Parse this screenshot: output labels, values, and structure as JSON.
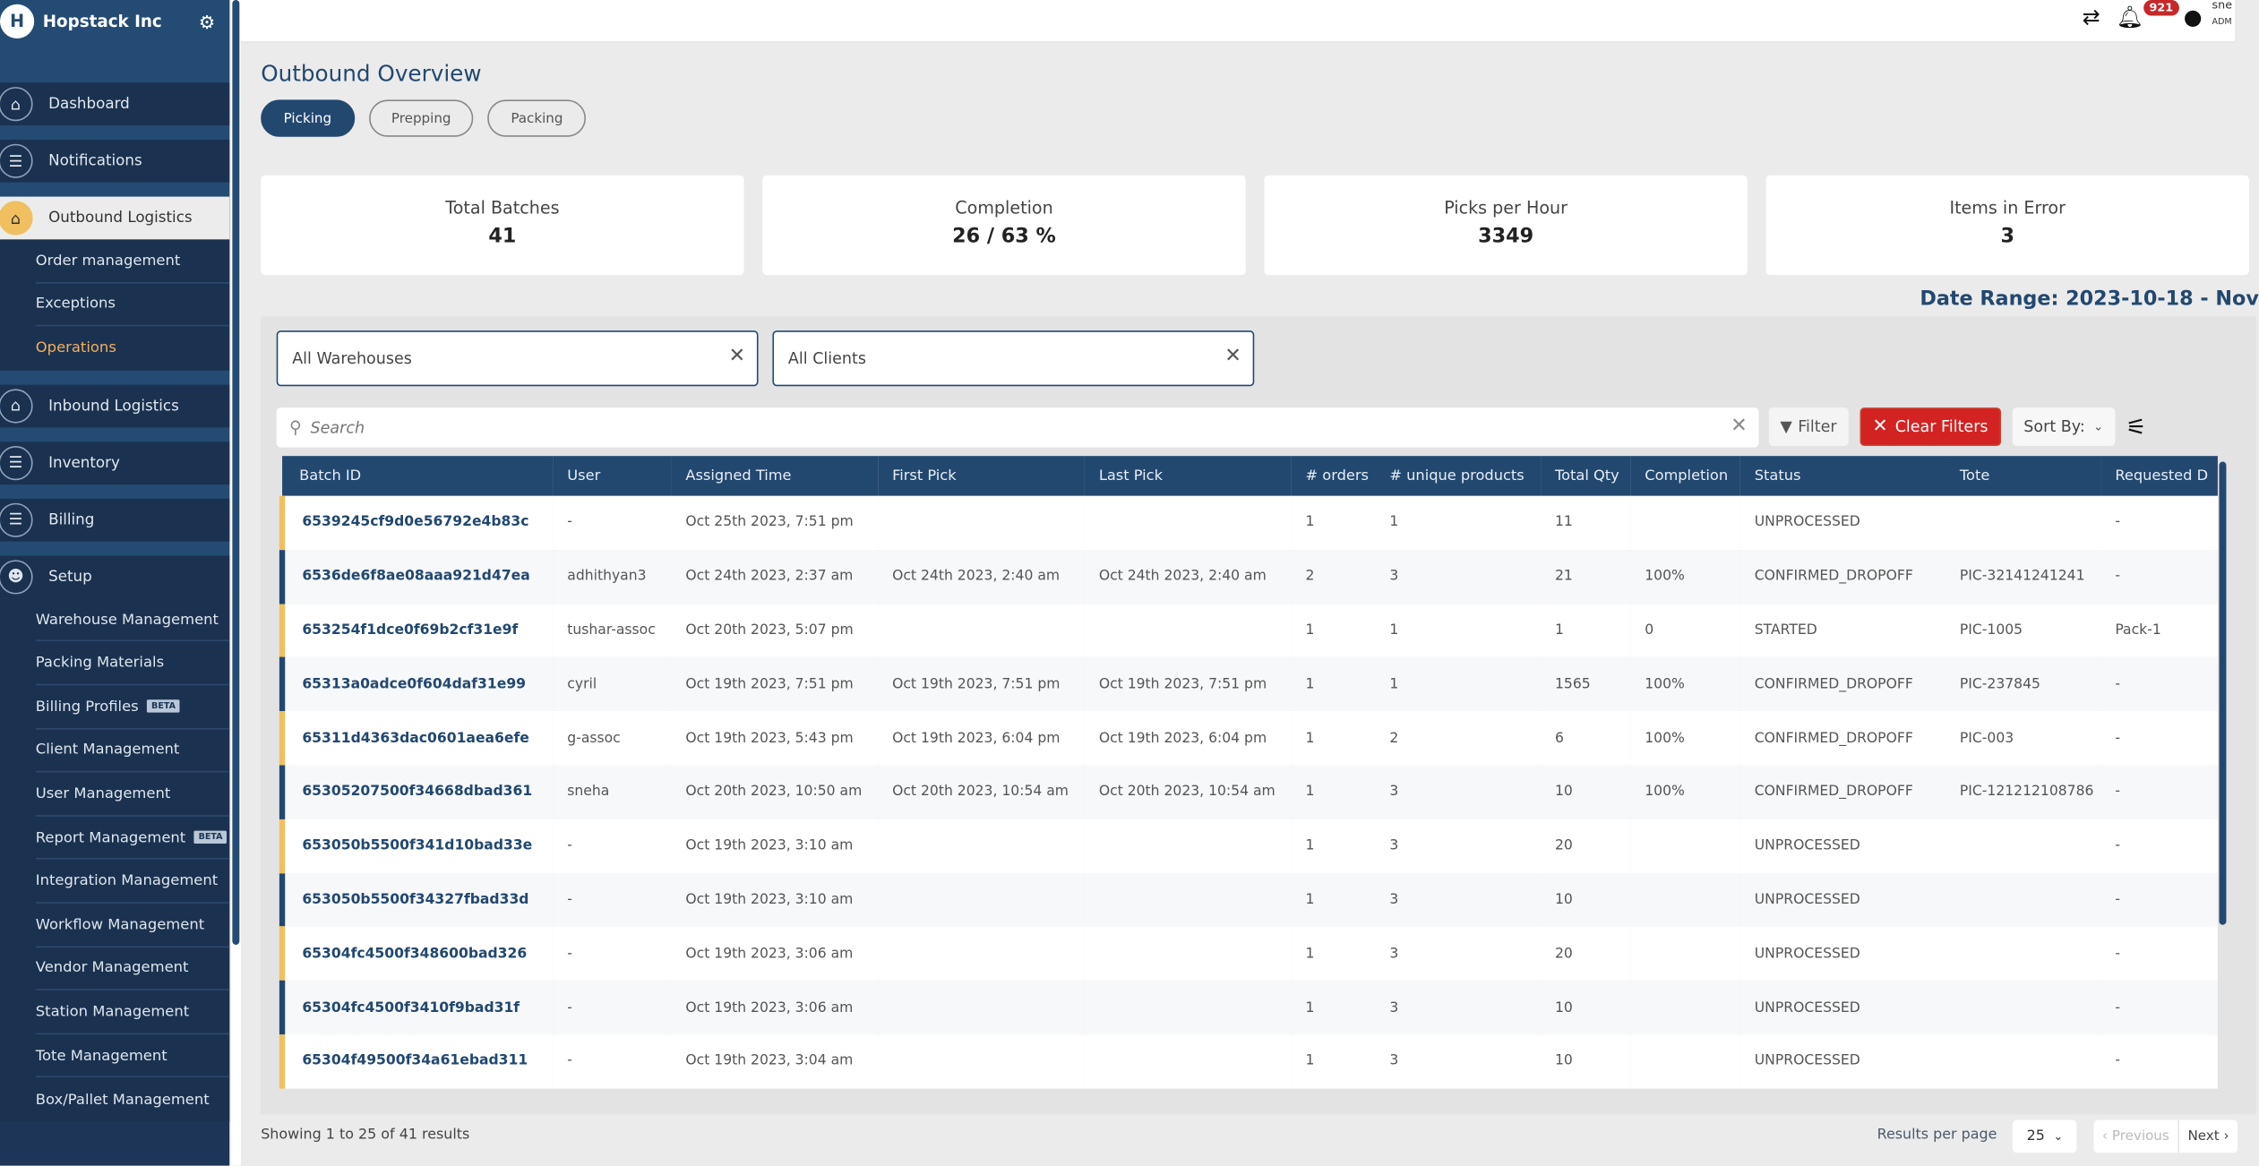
{
  "sidebar": {
    "brand": "Hopstack Inc",
    "logo_letter": "H",
    "nav": [
      {
        "label": "Dashboard",
        "icon": "warehouse-icon"
      },
      {
        "label": "Notifications",
        "icon": "checklist-icon"
      },
      {
        "label": "Outbound Logistics",
        "icon": "warehouse-icon",
        "active": true
      }
    ],
    "outbound_sub": [
      "Order management",
      "Exceptions",
      "Operations"
    ],
    "nav2": [
      {
        "label": "Inbound Logistics",
        "icon": "warehouse-icon"
      },
      {
        "label": "Inventory",
        "icon": "checklist-icon"
      },
      {
        "label": "Billing",
        "icon": "checklist-icon"
      },
      {
        "label": "Setup",
        "icon": "team-icon"
      }
    ],
    "setup_sub": [
      {
        "label": "Warehouse Management"
      },
      {
        "label": "Packing Materials"
      },
      {
        "label": "Billing Profiles",
        "badge": "BETA"
      },
      {
        "label": "Client Management"
      },
      {
        "label": "User Management"
      },
      {
        "label": "Report Management",
        "badge": "BETA"
      },
      {
        "label": "Integration Management"
      },
      {
        "label": "Workflow Management"
      },
      {
        "label": "Vendor Management"
      },
      {
        "label": "Station Management"
      },
      {
        "label": "Tote Management"
      },
      {
        "label": "Box/Pallet Management"
      }
    ]
  },
  "topbar": {
    "notification_count": "921",
    "user_name": "sne",
    "user_role": "ADM"
  },
  "page": {
    "title": "Outbound Overview",
    "tabs": [
      {
        "label": "Picking",
        "active": true
      },
      {
        "label": "Prepping"
      },
      {
        "label": "Packing"
      }
    ],
    "stats": [
      {
        "label": "Total Batches",
        "value": "41"
      },
      {
        "label": "Completion",
        "value": "26 / 63 %"
      },
      {
        "label": "Picks per Hour",
        "value": "3349"
      },
      {
        "label": "Items in Error",
        "value": "3"
      }
    ],
    "date_range": "Date Range: 2023-10-18 - Nov",
    "warehouse_filter": "All Warehouses",
    "client_filter": "All Clients",
    "search_placeholder": "Search",
    "filter_label": "Filter",
    "clear_filters_label": "Clear Filters",
    "sort_label": "Sort By:"
  },
  "table": {
    "columns": [
      "Batch ID",
      "User",
      "Assigned Time",
      "First Pick",
      "Last Pick",
      "# orders",
      "# unique products",
      "Total Qty",
      "Completion",
      "Status",
      "Tote",
      "Requested D"
    ],
    "rows": [
      [
        "6539245cf9d0e56792e4b83c",
        "-",
        "Oct 25th 2023, 7:51 pm",
        "",
        "",
        "1",
        "1",
        "11",
        "",
        "UNPROCESSED",
        "",
        "-"
      ],
      [
        "6536de6f8ae08aaa921d47ea",
        "adhithyan3",
        "Oct 24th 2023, 2:37 am",
        "Oct 24th 2023, 2:40 am",
        "Oct 24th 2023, 2:40 am",
        "2",
        "3",
        "21",
        "100%",
        "CONFIRMED_DROPOFF",
        "PIC-32141241241",
        "-"
      ],
      [
        "653254f1dce0f69b2cf31e9f",
        "tushar-assoc",
        "Oct 20th 2023, 5:07 pm",
        "",
        "",
        "1",
        "1",
        "1",
        "0",
        "STARTED",
        "PIC-1005",
        "Pack-1"
      ],
      [
        "65313a0adce0f604daf31e99",
        "cyril",
        "Oct 19th 2023, 7:51 pm",
        "Oct 19th 2023, 7:51 pm",
        "Oct 19th 2023, 7:51 pm",
        "1",
        "1",
        "1565",
        "100%",
        "CONFIRMED_DROPOFF",
        "PIC-237845",
        "-"
      ],
      [
        "65311d4363dac0601aea6efe",
        "g-assoc",
        "Oct 19th 2023, 5:43 pm",
        "Oct 19th 2023, 6:04 pm",
        "Oct 19th 2023, 6:04 pm",
        "1",
        "2",
        "6",
        "100%",
        "CONFIRMED_DROPOFF",
        "PIC-003",
        "-"
      ],
      [
        "65305207500f34668dbad361",
        "sneha",
        "Oct 20th 2023, 10:50 am",
        "Oct 20th 2023, 10:54 am",
        "Oct 20th 2023, 10:54 am",
        "1",
        "3",
        "10",
        "100%",
        "CONFIRMED_DROPOFF",
        "PIC-121212108786",
        "-"
      ],
      [
        "653050b5500f341d10bad33e",
        "-",
        "Oct 19th 2023, 3:10 am",
        "",
        "",
        "1",
        "3",
        "20",
        "",
        "UNPROCESSED",
        "",
        "-"
      ],
      [
        "653050b5500f34327fbad33d",
        "-",
        "Oct 19th 2023, 3:10 am",
        "",
        "",
        "1",
        "3",
        "10",
        "",
        "UNPROCESSED",
        "",
        "-"
      ],
      [
        "65304fc4500f348600bad326",
        "-",
        "Oct 19th 2023, 3:06 am",
        "",
        "",
        "1",
        "3",
        "20",
        "",
        "UNPROCESSED",
        "",
        "-"
      ],
      [
        "65304fc4500f3410f9bad31f",
        "-",
        "Oct 19th 2023, 3:06 am",
        "",
        "",
        "1",
        "3",
        "10",
        "",
        "UNPROCESSED",
        "",
        "-"
      ],
      [
        "65304f49500f34a61ebad311",
        "-",
        "Oct 19th 2023, 3:04 am",
        "",
        "",
        "1",
        "3",
        "10",
        "",
        "UNPROCESSED",
        "",
        "-"
      ]
    ]
  },
  "footer": {
    "summary": "Showing 1 to 25 of 41 results",
    "results_per_page_label": "Results per page",
    "per_page": "25",
    "previous": "Previous",
    "next": "Next"
  },
  "colors": {
    "primary": "#224870",
    "accent": "#f0c060",
    "danger": "#d32222",
    "sidebar": "#1d3557"
  }
}
